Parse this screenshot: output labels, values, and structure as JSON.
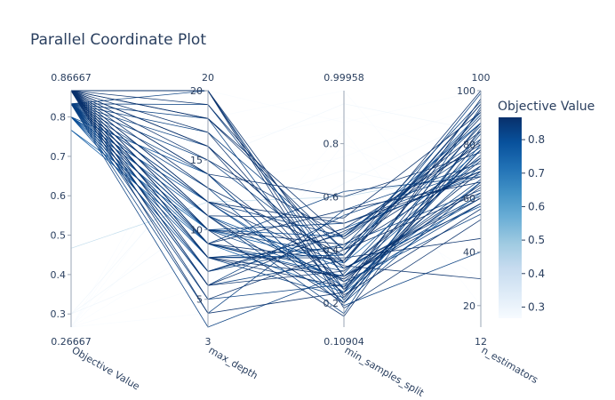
{
  "chart_data": {
    "type": "parallel_coordinates",
    "title": "Parallel Coordinate Plot",
    "dimensions": [
      {
        "label": "Objective Value",
        "range": [
          0.26667,
          0.86667
        ],
        "range_labels": [
          "0.26667",
          "0.86667"
        ],
        "ticks": [
          0.3,
          0.4,
          0.5,
          0.6,
          0.7,
          0.8
        ],
        "tick_labels": [
          "0.3",
          "0.4",
          "0.5",
          "0.6",
          "0.7",
          "0.8"
        ]
      },
      {
        "label": "max_depth",
        "range": [
          3,
          20
        ],
        "range_labels": [
          "3",
          "20"
        ],
        "ticks": [
          5,
          10,
          15,
          20
        ],
        "tick_labels": [
          "5",
          "10",
          "15",
          "20"
        ]
      },
      {
        "label": "min_samples_split",
        "range": [
          0.10904,
          0.99958
        ],
        "range_labels": [
          "0.10904",
          "0.99958"
        ],
        "ticks": [
          0.2,
          0.4,
          0.6,
          0.8
        ],
        "tick_labels": [
          "0.2",
          "0.4",
          "0.6",
          "0.8"
        ]
      },
      {
        "label": "n_estimators",
        "range": [
          12,
          100
        ],
        "range_labels": [
          "12",
          "100"
        ],
        "ticks": [
          20,
          40,
          60,
          80,
          100
        ],
        "tick_labels": [
          "20",
          "40",
          "60",
          "80",
          "100"
        ]
      }
    ],
    "colorbar": {
      "title": "Objective Value",
      "range": [
        0.26667,
        0.86667
      ],
      "ticks": [
        0.3,
        0.4,
        0.5,
        0.6,
        0.7,
        0.8
      ],
      "tick_labels": [
        "0.3",
        "0.4",
        "0.5",
        "0.6",
        "0.7",
        "0.8"
      ],
      "colorscale": [
        "#f7fbff",
        "#deebf7",
        "#c6dbef",
        "#9ecae1",
        "#6baed6",
        "#4292c6",
        "#2171b5",
        "#08519c",
        "#08306b"
      ]
    },
    "trials": [
      [
        0.86667,
        20,
        0.3,
        65
      ],
      [
        0.86667,
        20,
        0.22,
        78
      ],
      [
        0.86667,
        19,
        0.35,
        95
      ],
      [
        0.86667,
        18,
        0.4,
        72
      ],
      [
        0.86667,
        17,
        0.25,
        88
      ],
      [
        0.86667,
        16,
        0.33,
        60
      ],
      [
        0.86667,
        15,
        0.45,
        85
      ],
      [
        0.86667,
        14,
        0.28,
        70
      ],
      [
        0.86667,
        13,
        0.38,
        100
      ],
      [
        0.86667,
        12,
        0.5,
        68
      ],
      [
        0.86667,
        11,
        0.2,
        82
      ],
      [
        0.86667,
        10,
        0.42,
        75
      ],
      [
        0.86667,
        9,
        0.36,
        90
      ],
      [
        0.86667,
        9,
        0.55,
        66
      ],
      [
        0.86667,
        8,
        0.3,
        58
      ],
      [
        0.86667,
        8,
        0.26,
        93
      ],
      [
        0.86667,
        7,
        0.48,
        80
      ],
      [
        0.86667,
        6,
        0.32,
        74
      ],
      [
        0.86667,
        5,
        0.4,
        62
      ],
      [
        0.86667,
        4,
        0.24,
        97
      ],
      [
        0.86667,
        20,
        0.18,
        52
      ],
      [
        0.86667,
        14,
        0.6,
        77
      ],
      [
        0.86667,
        10,
        0.15,
        86
      ],
      [
        0.86667,
        12,
        0.34,
        30
      ],
      [
        0.86667,
        6,
        0.47,
        70
      ],
      [
        0.86667,
        9,
        0.29,
        64
      ],
      [
        0.86667,
        11,
        0.52,
        92
      ],
      [
        0.86667,
        16,
        0.23,
        56
      ],
      [
        0.86667,
        18,
        0.44,
        81
      ],
      [
        0.86667,
        8,
        0.37,
        45
      ],
      [
        0.83333,
        20,
        0.25,
        72
      ],
      [
        0.83333,
        19,
        0.3,
        60
      ],
      [
        0.83333,
        17,
        0.4,
        88
      ],
      [
        0.83333,
        15,
        0.35,
        99
      ],
      [
        0.83333,
        14,
        0.2,
        66
      ],
      [
        0.83333,
        12,
        0.45,
        79
      ],
      [
        0.83333,
        11,
        0.28,
        54
      ],
      [
        0.83333,
        10,
        0.38,
        91
      ],
      [
        0.83333,
        10,
        0.5,
        70
      ],
      [
        0.83333,
        9,
        0.32,
        76
      ],
      [
        0.83333,
        8,
        0.22,
        84
      ],
      [
        0.83333,
        7,
        0.42,
        63
      ],
      [
        0.83333,
        6,
        0.36,
        95
      ],
      [
        0.83333,
        5,
        0.27,
        58
      ],
      [
        0.83333,
        4,
        0.55,
        73
      ],
      [
        0.83333,
        3,
        0.31,
        87
      ],
      [
        0.83333,
        13,
        0.19,
        40
      ],
      [
        0.83333,
        9,
        0.62,
        68
      ],
      [
        0.83333,
        11,
        0.16,
        94
      ],
      [
        0.83333,
        7,
        0.46,
        82
      ],
      [
        0.83333,
        16,
        0.33,
        61
      ],
      [
        0.83333,
        12,
        0.24,
        78
      ],
      [
        0.83333,
        8,
        0.41,
        96
      ],
      [
        0.83333,
        10,
        0.29,
        67
      ],
      [
        0.83333,
        18,
        0.21,
        85
      ],
      [
        0.83333,
        6,
        0.53,
        71
      ],
      [
        0.8,
        9,
        0.3,
        75
      ],
      [
        0.8,
        10,
        0.45,
        88
      ],
      [
        0.8,
        12,
        0.26,
        66
      ],
      [
        0.8,
        8,
        0.38,
        92
      ],
      [
        0.8,
        11,
        0.33,
        57
      ],
      [
        0.8,
        14,
        0.2,
        80
      ],
      [
        0.8,
        7,
        0.48,
        69
      ],
      [
        0.76667,
        10,
        0.35,
        78
      ],
      [
        0.76667,
        9,
        0.24,
        62
      ],
      [
        0.46667,
        12,
        0.6,
        70
      ],
      [
        0.3,
        15,
        0.95,
        85
      ],
      [
        0.3,
        11,
        0.7,
        60
      ],
      [
        0.3,
        8,
        0.65,
        90
      ],
      [
        0.26667,
        18,
        0.99958,
        40
      ],
      [
        0.26667,
        6,
        0.85,
        20
      ],
      [
        0.26667,
        13,
        0.75,
        95
      ],
      [
        0.26667,
        4,
        0.8,
        55
      ],
      [
        0.26667,
        16,
        0.9,
        75
      ],
      [
        0.26667,
        9,
        0.62,
        30
      ],
      [
        0.26667,
        20,
        0.88,
        100
      ]
    ]
  }
}
